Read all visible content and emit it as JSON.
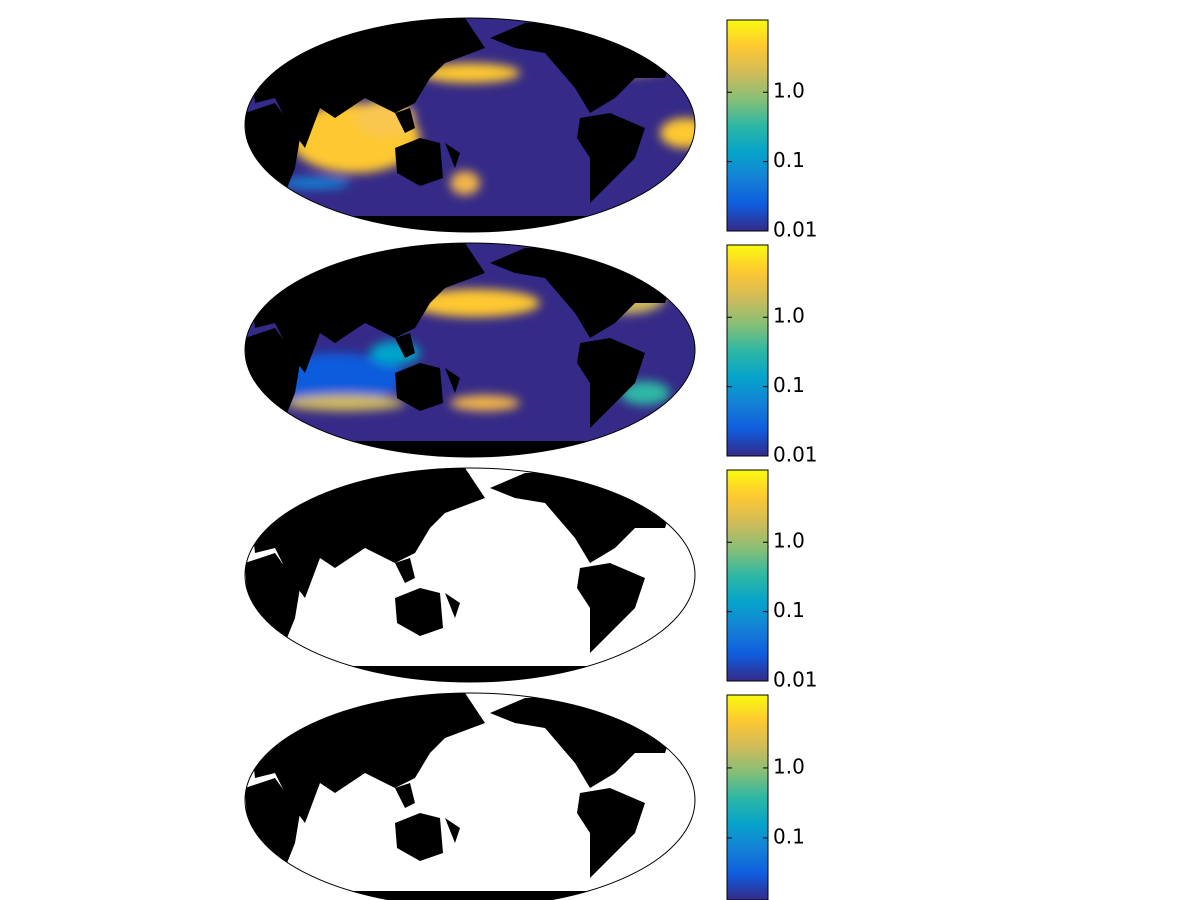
{
  "chart_data": [
    {
      "type": "map",
      "log_scale": true,
      "ocean_color": "#352a87",
      "colormap": [
        "#352a87",
        "#0f5cdd",
        "#1481d6",
        "#06a4ca",
        "#2eb7a4",
        "#87bf77",
        "#d1bb59",
        "#fec832",
        "#f9fb0e"
      ],
      "ylim": [
        0.01,
        11
      ],
      "yticks": [
        0.01,
        0.1,
        {
          "value": 1,
          "label": "1.0"
        }
      ]
    },
    {
      "type": "map",
      "log_scale": true,
      "ocean_color": "#352a87",
      "colormap": [
        "#352a87",
        "#0f5cdd",
        "#1481d6",
        "#06a4ca",
        "#2eb7a4",
        "#87bf77",
        "#d1bb59",
        "#fec832",
        "#f9fb0e"
      ],
      "ylim": [
        0.01,
        11
      ],
      "yticks": [
        0.01,
        0.1,
        {
          "value": 1,
          "label": "1.0"
        }
      ]
    },
    {
      "type": "map",
      "log_scale": true,
      "ocean_color": "#ffffff",
      "colormap": [
        "#352a87",
        "#0f5cdd",
        "#1481d6",
        "#06a4ca",
        "#2eb7a4",
        "#87bf77",
        "#d1bb59",
        "#fec832",
        "#f9fb0e"
      ],
      "ylim": [
        0.01,
        11
      ],
      "yticks": [
        0.01,
        0.1,
        {
          "value": 1,
          "label": "1.0"
        }
      ]
    },
    {
      "type": "map",
      "log_scale": true,
      "ocean_color": "#ffffff",
      "colormap": [
        "#352a87",
        "#0f5cdd",
        "#1481d6",
        "#06a4ca",
        "#2eb7a4",
        "#87bf77",
        "#d1bb59",
        "#fec832",
        "#f9fb0e"
      ],
      "ylim": [
        0.013,
        11
      ],
      "yticks": [
        0.1,
        {
          "value": 1,
          "label": "1.0"
        }
      ]
    }
  ]
}
